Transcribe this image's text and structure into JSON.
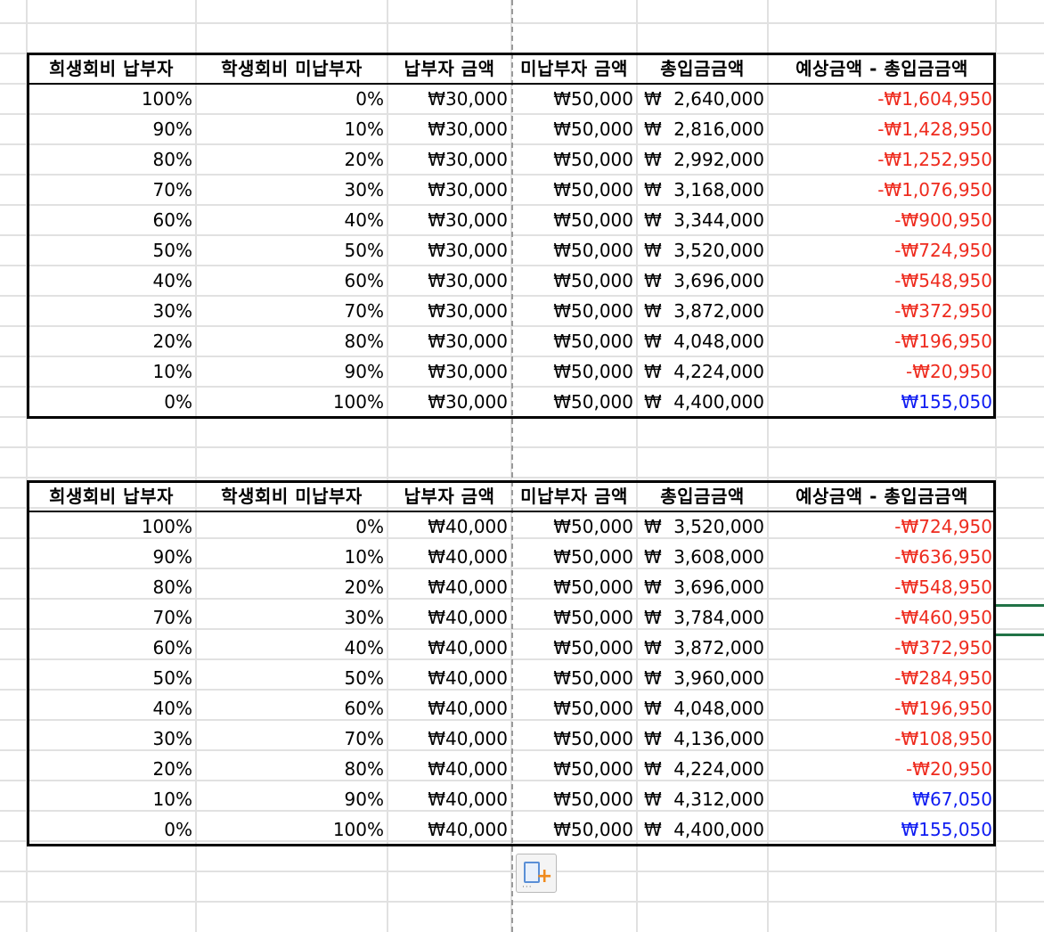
{
  "sheet": {
    "headers": [
      "희생회비 납부자",
      "학생회비 미납부자",
      "납부자 금액",
      "미납부자 금액",
      "총입금금액",
      "예상금액 - 총입금금액"
    ],
    "currency_symbol": "₩",
    "colors": {
      "negative": "#ee2b1e",
      "positive": "#0f1cf2",
      "selection": "#217346"
    },
    "tables": [
      {
        "rows": [
          [
            "100%",
            "0%",
            "₩30,000",
            "₩50,000",
            "2,640,000",
            "-₩1,604,950"
          ],
          [
            "90%",
            "10%",
            "₩30,000",
            "₩50,000",
            "2,816,000",
            "-₩1,428,950"
          ],
          [
            "80%",
            "20%",
            "₩30,000",
            "₩50,000",
            "2,992,000",
            "-₩1,252,950"
          ],
          [
            "70%",
            "30%",
            "₩30,000",
            "₩50,000",
            "3,168,000",
            "-₩1,076,950"
          ],
          [
            "60%",
            "40%",
            "₩30,000",
            "₩50,000",
            "3,344,000",
            "-₩900,950"
          ],
          [
            "50%",
            "50%",
            "₩30,000",
            "₩50,000",
            "3,520,000",
            "-₩724,950"
          ],
          [
            "40%",
            "60%",
            "₩30,000",
            "₩50,000",
            "3,696,000",
            "-₩548,950"
          ],
          [
            "30%",
            "70%",
            "₩30,000",
            "₩50,000",
            "3,872,000",
            "-₩372,950"
          ],
          [
            "20%",
            "80%",
            "₩30,000",
            "₩50,000",
            "4,048,000",
            "-₩196,950"
          ],
          [
            "10%",
            "90%",
            "₩30,000",
            "₩50,000",
            "4,224,000",
            "-₩20,950"
          ],
          [
            "0%",
            "100%",
            "₩30,000",
            "₩50,000",
            "4,400,000",
            "₩155,050"
          ]
        ]
      },
      {
        "rows": [
          [
            "100%",
            "0%",
            "₩40,000",
            "₩50,000",
            "3,520,000",
            "-₩724,950"
          ],
          [
            "90%",
            "10%",
            "₩40,000",
            "₩50,000",
            "3,608,000",
            "-₩636,950"
          ],
          [
            "80%",
            "20%",
            "₩40,000",
            "₩50,000",
            "3,696,000",
            "-₩548,950"
          ],
          [
            "70%",
            "30%",
            "₩40,000",
            "₩50,000",
            "3,784,000",
            "-₩460,950"
          ],
          [
            "60%",
            "40%",
            "₩40,000",
            "₩50,000",
            "3,872,000",
            "-₩372,950"
          ],
          [
            "50%",
            "50%",
            "₩40,000",
            "₩50,000",
            "3,960,000",
            "-₩284,950"
          ],
          [
            "40%",
            "60%",
            "₩40,000",
            "₩50,000",
            "4,048,000",
            "-₩196,950"
          ],
          [
            "30%",
            "70%",
            "₩40,000",
            "₩50,000",
            "4,136,000",
            "-₩108,950"
          ],
          [
            "20%",
            "80%",
            "₩40,000",
            "₩50,000",
            "4,224,000",
            "-₩20,950"
          ],
          [
            "10%",
            "90%",
            "₩40,000",
            "₩50,000",
            "4,312,000",
            "₩67,050"
          ],
          [
            "0%",
            "100%",
            "₩40,000",
            "₩50,000",
            "4,400,000",
            "₩155,050"
          ]
        ]
      }
    ],
    "paste_options_icon": "paste-options-icon"
  }
}
